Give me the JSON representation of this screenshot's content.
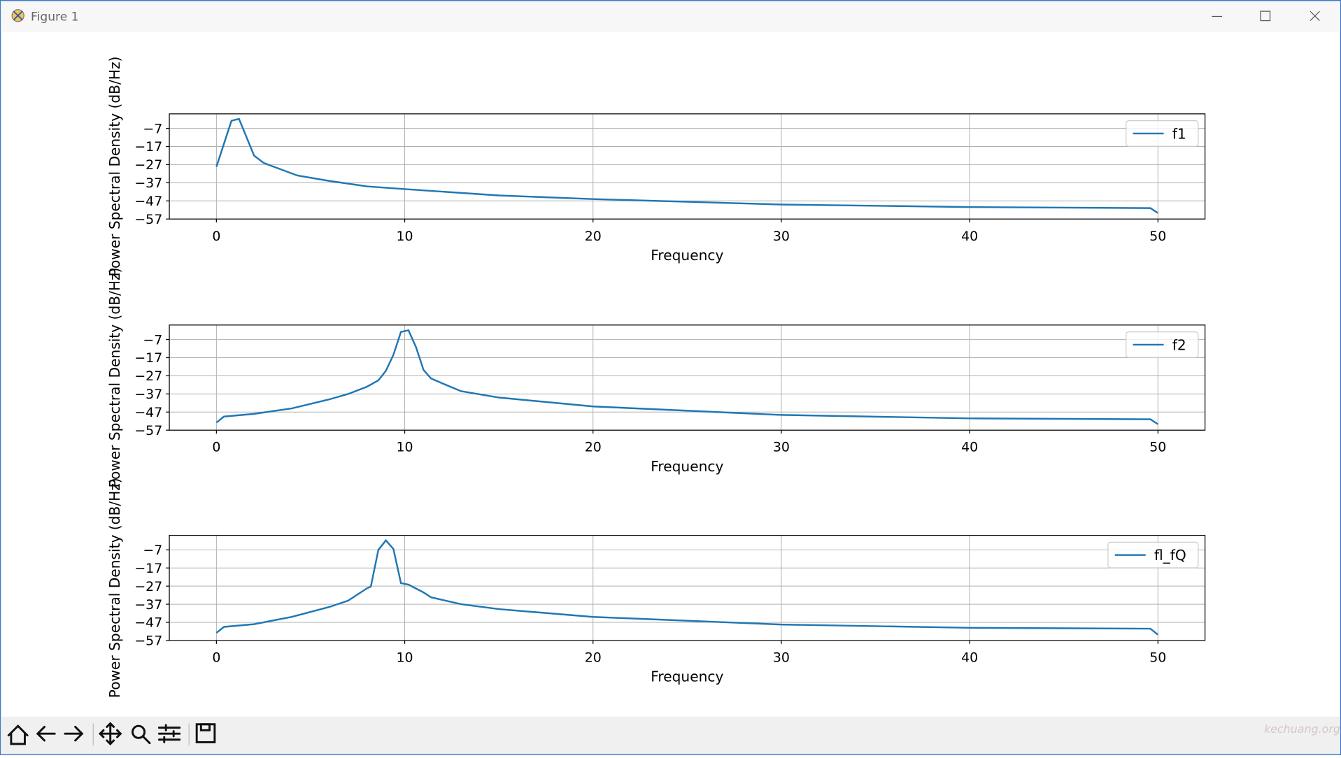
{
  "window": {
    "title": "Figure 1",
    "watermark": "kechuang.org"
  },
  "chart_data": [
    {
      "type": "line",
      "xlabel": "Frequency",
      "ylabel": "Power Spectral Density (dB/Hz)",
      "x": [
        0,
        0.8,
        1.2,
        2,
        2.5,
        3,
        4.3,
        6,
        8,
        10,
        15,
        20,
        30,
        40,
        49.6,
        50
      ],
      "series": [
        {
          "name": "f1",
          "color": "#1f77b4",
          "values": [
            -28.2,
            -2.8,
            -1.8,
            -22,
            -26,
            -28,
            -33,
            -36,
            -39,
            -40.5,
            -44,
            -46,
            -49,
            -50.4,
            -51,
            -53.7
          ]
        }
      ],
      "xlim": [
        -2.5,
        52.5
      ],
      "ylim": [
        -57,
        1
      ],
      "xticks": [
        0,
        10,
        20,
        30,
        40,
        50
      ],
      "yticks": [
        {
          "value": -57,
          "label": "−57"
        },
        {
          "value": -47,
          "label": "−47"
        },
        {
          "value": -37,
          "label": "−37"
        },
        {
          "value": -27,
          "label": "−27"
        },
        {
          "value": -17,
          "label": "−17"
        },
        {
          "value": -7,
          "label": "−7"
        }
      ],
      "grid": true,
      "legend": "upper right"
    },
    {
      "type": "line",
      "xlabel": "Frequency",
      "ylabel": "Power Spectral Density (dB/Hz)",
      "x": [
        0,
        0.4,
        2,
        4,
        6,
        7,
        8,
        8.6,
        9,
        9.4,
        9.8,
        10.2,
        10.6,
        11,
        11.4,
        12,
        13,
        15,
        20,
        30,
        40,
        49.6,
        50
      ],
      "series": [
        {
          "name": "f2",
          "color": "#1f77b4",
          "values": [
            -52.8,
            -49.5,
            -48,
            -45,
            -40,
            -37,
            -33,
            -29.5,
            -24.3,
            -15.4,
            -2.8,
            -1.9,
            -11.2,
            -23.8,
            -28.5,
            -31.2,
            -35.5,
            -39,
            -43.9,
            -48.6,
            -50.5,
            -51,
            -53.7
          ]
        }
      ],
      "xlim": [
        -2.5,
        52.5
      ],
      "ylim": [
        -57,
        1
      ],
      "xticks": [
        0,
        10,
        20,
        30,
        40,
        50
      ],
      "yticks": [
        {
          "value": -57,
          "label": "−57"
        },
        {
          "value": -47,
          "label": "−47"
        },
        {
          "value": -37,
          "label": "−37"
        },
        {
          "value": -27,
          "label": "−27"
        },
        {
          "value": -17,
          "label": "−17"
        },
        {
          "value": -7,
          "label": "−7"
        }
      ],
      "grid": true,
      "legend": "upper right"
    },
    {
      "type": "line",
      "xlabel": "Frequency",
      "ylabel": "Power Spectral Density (dB/Hz)",
      "x": [
        0,
        0.4,
        2,
        4,
        6,
        7,
        8,
        8.2,
        8.6,
        9,
        9.4,
        9.8,
        10.2,
        11,
        11.4,
        13,
        15,
        20,
        30,
        40,
        49.6,
        50
      ],
      "series": [
        {
          "name": "fl_fQ",
          "color": "#1f77b4",
          "values": [
            -52.8,
            -49.5,
            -48,
            -44,
            -38.5,
            -35,
            -28.2,
            -27.3,
            -7,
            -1.8,
            -6.5,
            -25.4,
            -26.2,
            -30.5,
            -33.2,
            -37,
            -39.7,
            -44,
            -48.2,
            -50,
            -50.5,
            -53.8
          ]
        }
      ],
      "xlim": [
        -2.5,
        52.5
      ],
      "ylim": [
        -57,
        1
      ],
      "xticks": [
        0,
        10,
        20,
        30,
        40,
        50
      ],
      "yticks": [
        {
          "value": -57,
          "label": "−57"
        },
        {
          "value": -47,
          "label": "−47"
        },
        {
          "value": -37,
          "label": "−37"
        },
        {
          "value": -27,
          "label": "−27"
        },
        {
          "value": -17,
          "label": "−17"
        },
        {
          "value": -7,
          "label": "−7"
        }
      ],
      "grid": true,
      "legend": "upper right"
    }
  ]
}
